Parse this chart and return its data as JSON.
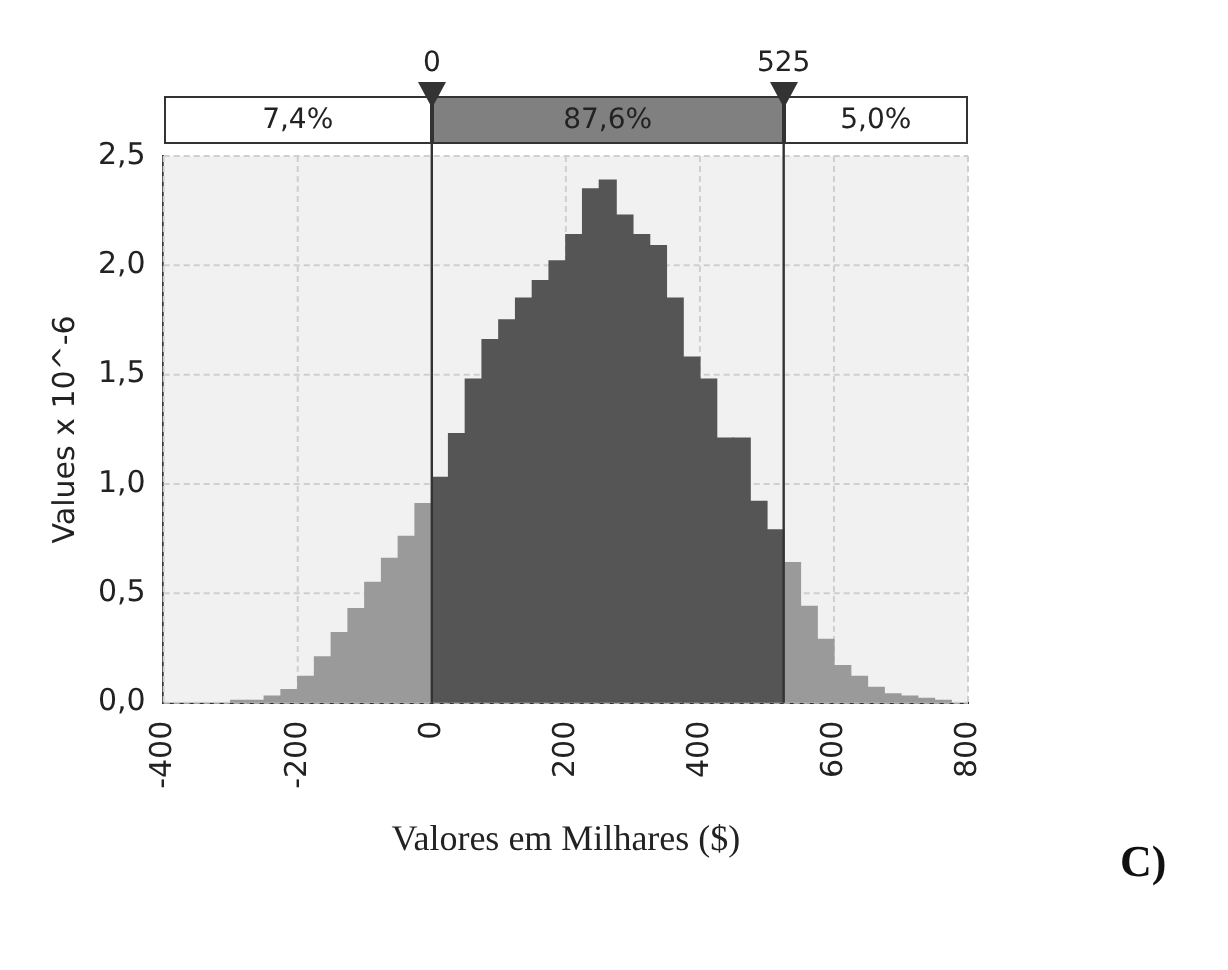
{
  "chart_data": {
    "type": "histogram",
    "xlabel": "Valores em Milhares ($)",
    "ylabel": "Values x 10^-6",
    "bins": [
      -300,
      -275,
      -250,
      -225,
      -200,
      -175,
      -150,
      -125,
      -100,
      -75,
      -50,
      -25,
      0,
      25,
      50,
      75,
      100,
      125,
      150,
      175,
      200,
      225,
      250,
      275,
      300,
      325,
      350,
      375,
      400,
      425,
      450,
      475,
      500,
      525,
      550,
      575,
      600,
      625,
      650,
      675,
      700,
      725,
      750,
      775
    ],
    "values": [
      0.01,
      0.01,
      0.03,
      0.06,
      0.12,
      0.21,
      0.32,
      0.43,
      0.55,
      0.66,
      0.76,
      0.91,
      1.03,
      1.23,
      1.48,
      1.66,
      1.75,
      1.85,
      1.93,
      2.02,
      2.14,
      2.35,
      2.39,
      2.23,
      2.14,
      2.09,
      1.85,
      1.58,
      1.48,
      1.21,
      1.21,
      0.92,
      0.79,
      0.64,
      0.44,
      0.29,
      0.17,
      0.12,
      0.07,
      0.04,
      0.03,
      0.02,
      0.01
    ],
    "colors": [
      "#9a9a9a",
      "#9a9a9a",
      "#9a9a9a",
      "#9a9a9a",
      "#9a9a9a",
      "#9a9a9a",
      "#9a9a9a",
      "#9a9a9a",
      "#9a9a9a",
      "#9a9a9a",
      "#9a9a9a",
      "#9a9a9a",
      "#555555",
      "#555555",
      "#555555",
      "#555555",
      "#555555",
      "#555555",
      "#555555",
      "#555555",
      "#555555",
      "#555555",
      "#555555",
      "#555555",
      "#555555",
      "#555555",
      "#555555",
      "#555555",
      "#555555",
      "#555555",
      "#555555",
      "#555555",
      "#555555",
      "#9a9a9a",
      "#9a9a9a",
      "#9a9a9a",
      "#9a9a9a",
      "#9a9a9a",
      "#9a9a9a",
      "#9a9a9a",
      "#9a9a9a",
      "#9a9a9a",
      "#9a9a9a"
    ],
    "xlim": [
      -400,
      800
    ],
    "xticks": [
      -400,
      -200,
      0,
      200,
      400,
      600,
      800
    ],
    "ylim": [
      0,
      2.5
    ],
    "yticks": [
      {
        "value": 0,
        "label": "0,0"
      },
      {
        "value": 0.5,
        "label": "0,5"
      },
      {
        "value": 1,
        "label": "1,0"
      },
      {
        "value": 1.5,
        "label": "1,5"
      },
      {
        "value": 2,
        "label": "2,0"
      },
      {
        "value": 2.5,
        "label": "2,5"
      }
    ],
    "ref_lines": [
      {
        "axis": "x",
        "value": 0,
        "label": "0",
        "color": "#333333"
      },
      {
        "axis": "x",
        "value": 525,
        "label": "525",
        "color": "#333333"
      }
    ],
    "grid": true,
    "legend": false,
    "annotations": [
      "7,4%",
      "87,6%",
      "5,0%",
      "C)"
    ]
  }
}
